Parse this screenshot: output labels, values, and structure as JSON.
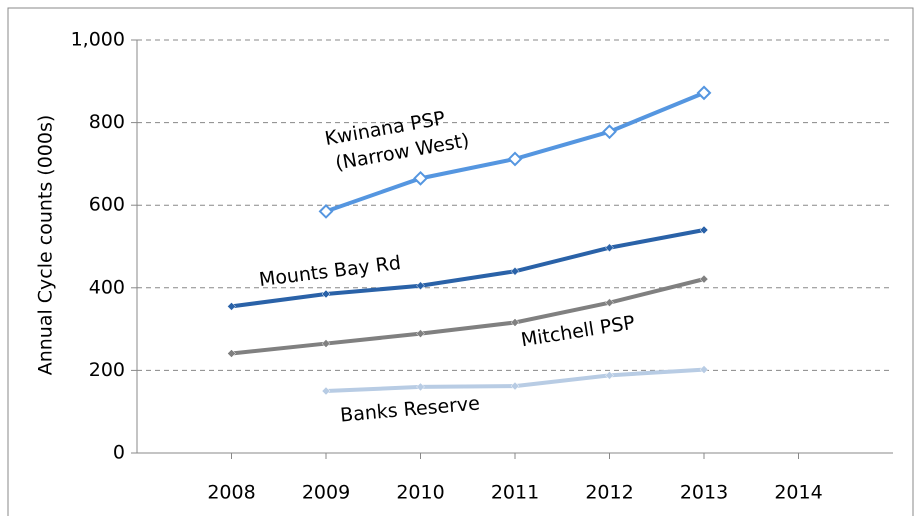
{
  "chart_data": {
    "type": "line",
    "y_label": "Annual  Cycle counts (000s)",
    "x": [
      2008,
      2009,
      2010,
      2011,
      2012,
      2013
    ],
    "xlim": [
      2007,
      2015
    ],
    "xticks": [
      2008,
      2009,
      2010,
      2011,
      2012,
      2013,
      2014
    ],
    "ylim": [
      0,
      1000
    ],
    "yticks": [
      0,
      200,
      400,
      600,
      {
        "value": 800,
        "label": "800"
      },
      {
        "value": 1000,
        "label": "1,000"
      }
    ],
    "grid": true,
    "series": [
      {
        "name": "Kwinana PSP (Narrow West)",
        "color": "#5596e0",
        "values": [
          null,
          585,
          665,
          712,
          778,
          872
        ]
      },
      {
        "name": "Mounts Bay Rd",
        "color": "#2a62a8",
        "values": [
          355,
          385,
          405,
          440,
          497,
          540
        ]
      },
      {
        "name": "Mitchell PSP",
        "color": "#808080",
        "values": [
          241,
          265,
          289,
          316,
          364,
          421
        ]
      },
      {
        "name": "Banks Reserve",
        "color": "#b8cce4",
        "values": [
          null,
          150,
          160,
          162,
          188,
          202
        ]
      }
    ]
  }
}
